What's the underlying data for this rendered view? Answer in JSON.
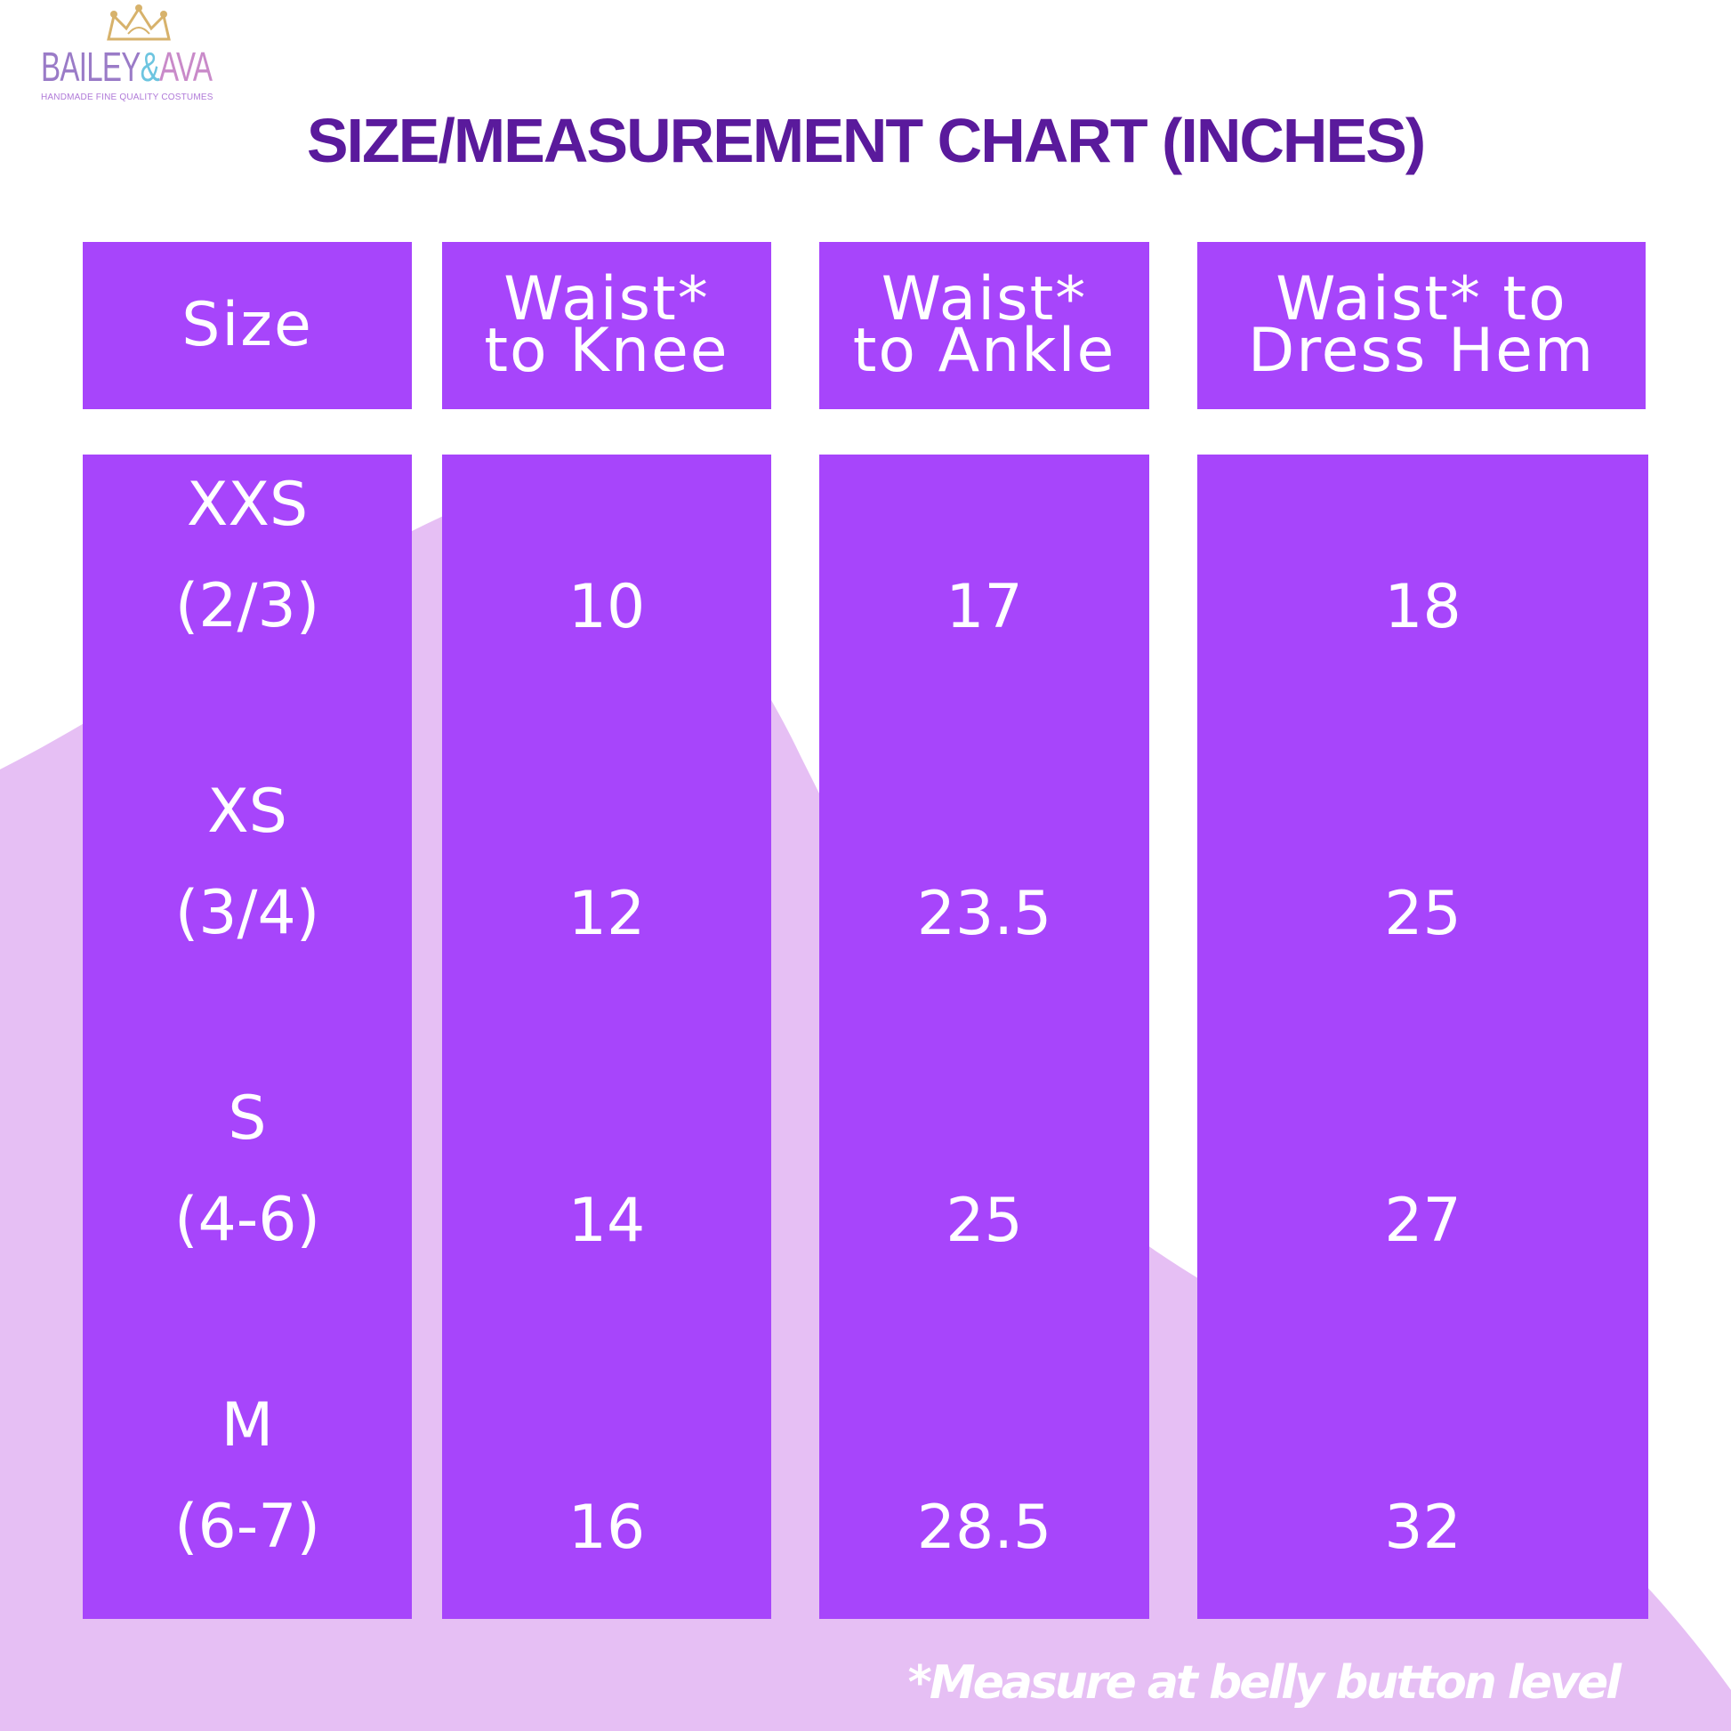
{
  "brand": {
    "name_part1": "BAILEY",
    "name_amp": "&",
    "name_part2": "AVA",
    "tagline": "HANDMADE FINE QUALITY COSTUMES"
  },
  "title": "SIZE/MEASUREMENT CHART (INCHES)",
  "headers": {
    "size": "Size",
    "knee_line1": "Waist*",
    "knee_line2": "to Knee",
    "ankle_line1": "Waist*",
    "ankle_line2": "to Ankle",
    "hem_line1": "Waist* to",
    "hem_line2": "Dress Hem"
  },
  "rows": [
    {
      "size": "XXS",
      "range": "(2/3)",
      "knee": "10",
      "ankle": "17",
      "hem": "18"
    },
    {
      "size": "XS",
      "range": "(3/4)",
      "knee": "12",
      "ankle": "23.5",
      "hem": "25"
    },
    {
      "size": "S",
      "range": "(4-6)",
      "knee": "14",
      "ankle": "25",
      "hem": "27"
    },
    {
      "size": "M",
      "range": "(6-7)",
      "knee": "16",
      "ankle": "28.5",
      "hem": "32"
    }
  ],
  "footnote": "*Measure at belly button level",
  "colors": {
    "cell": "#a745fb",
    "title": "#5a1a9c",
    "background_shape": "#e6bff4",
    "crown": "#d7b26b"
  }
}
